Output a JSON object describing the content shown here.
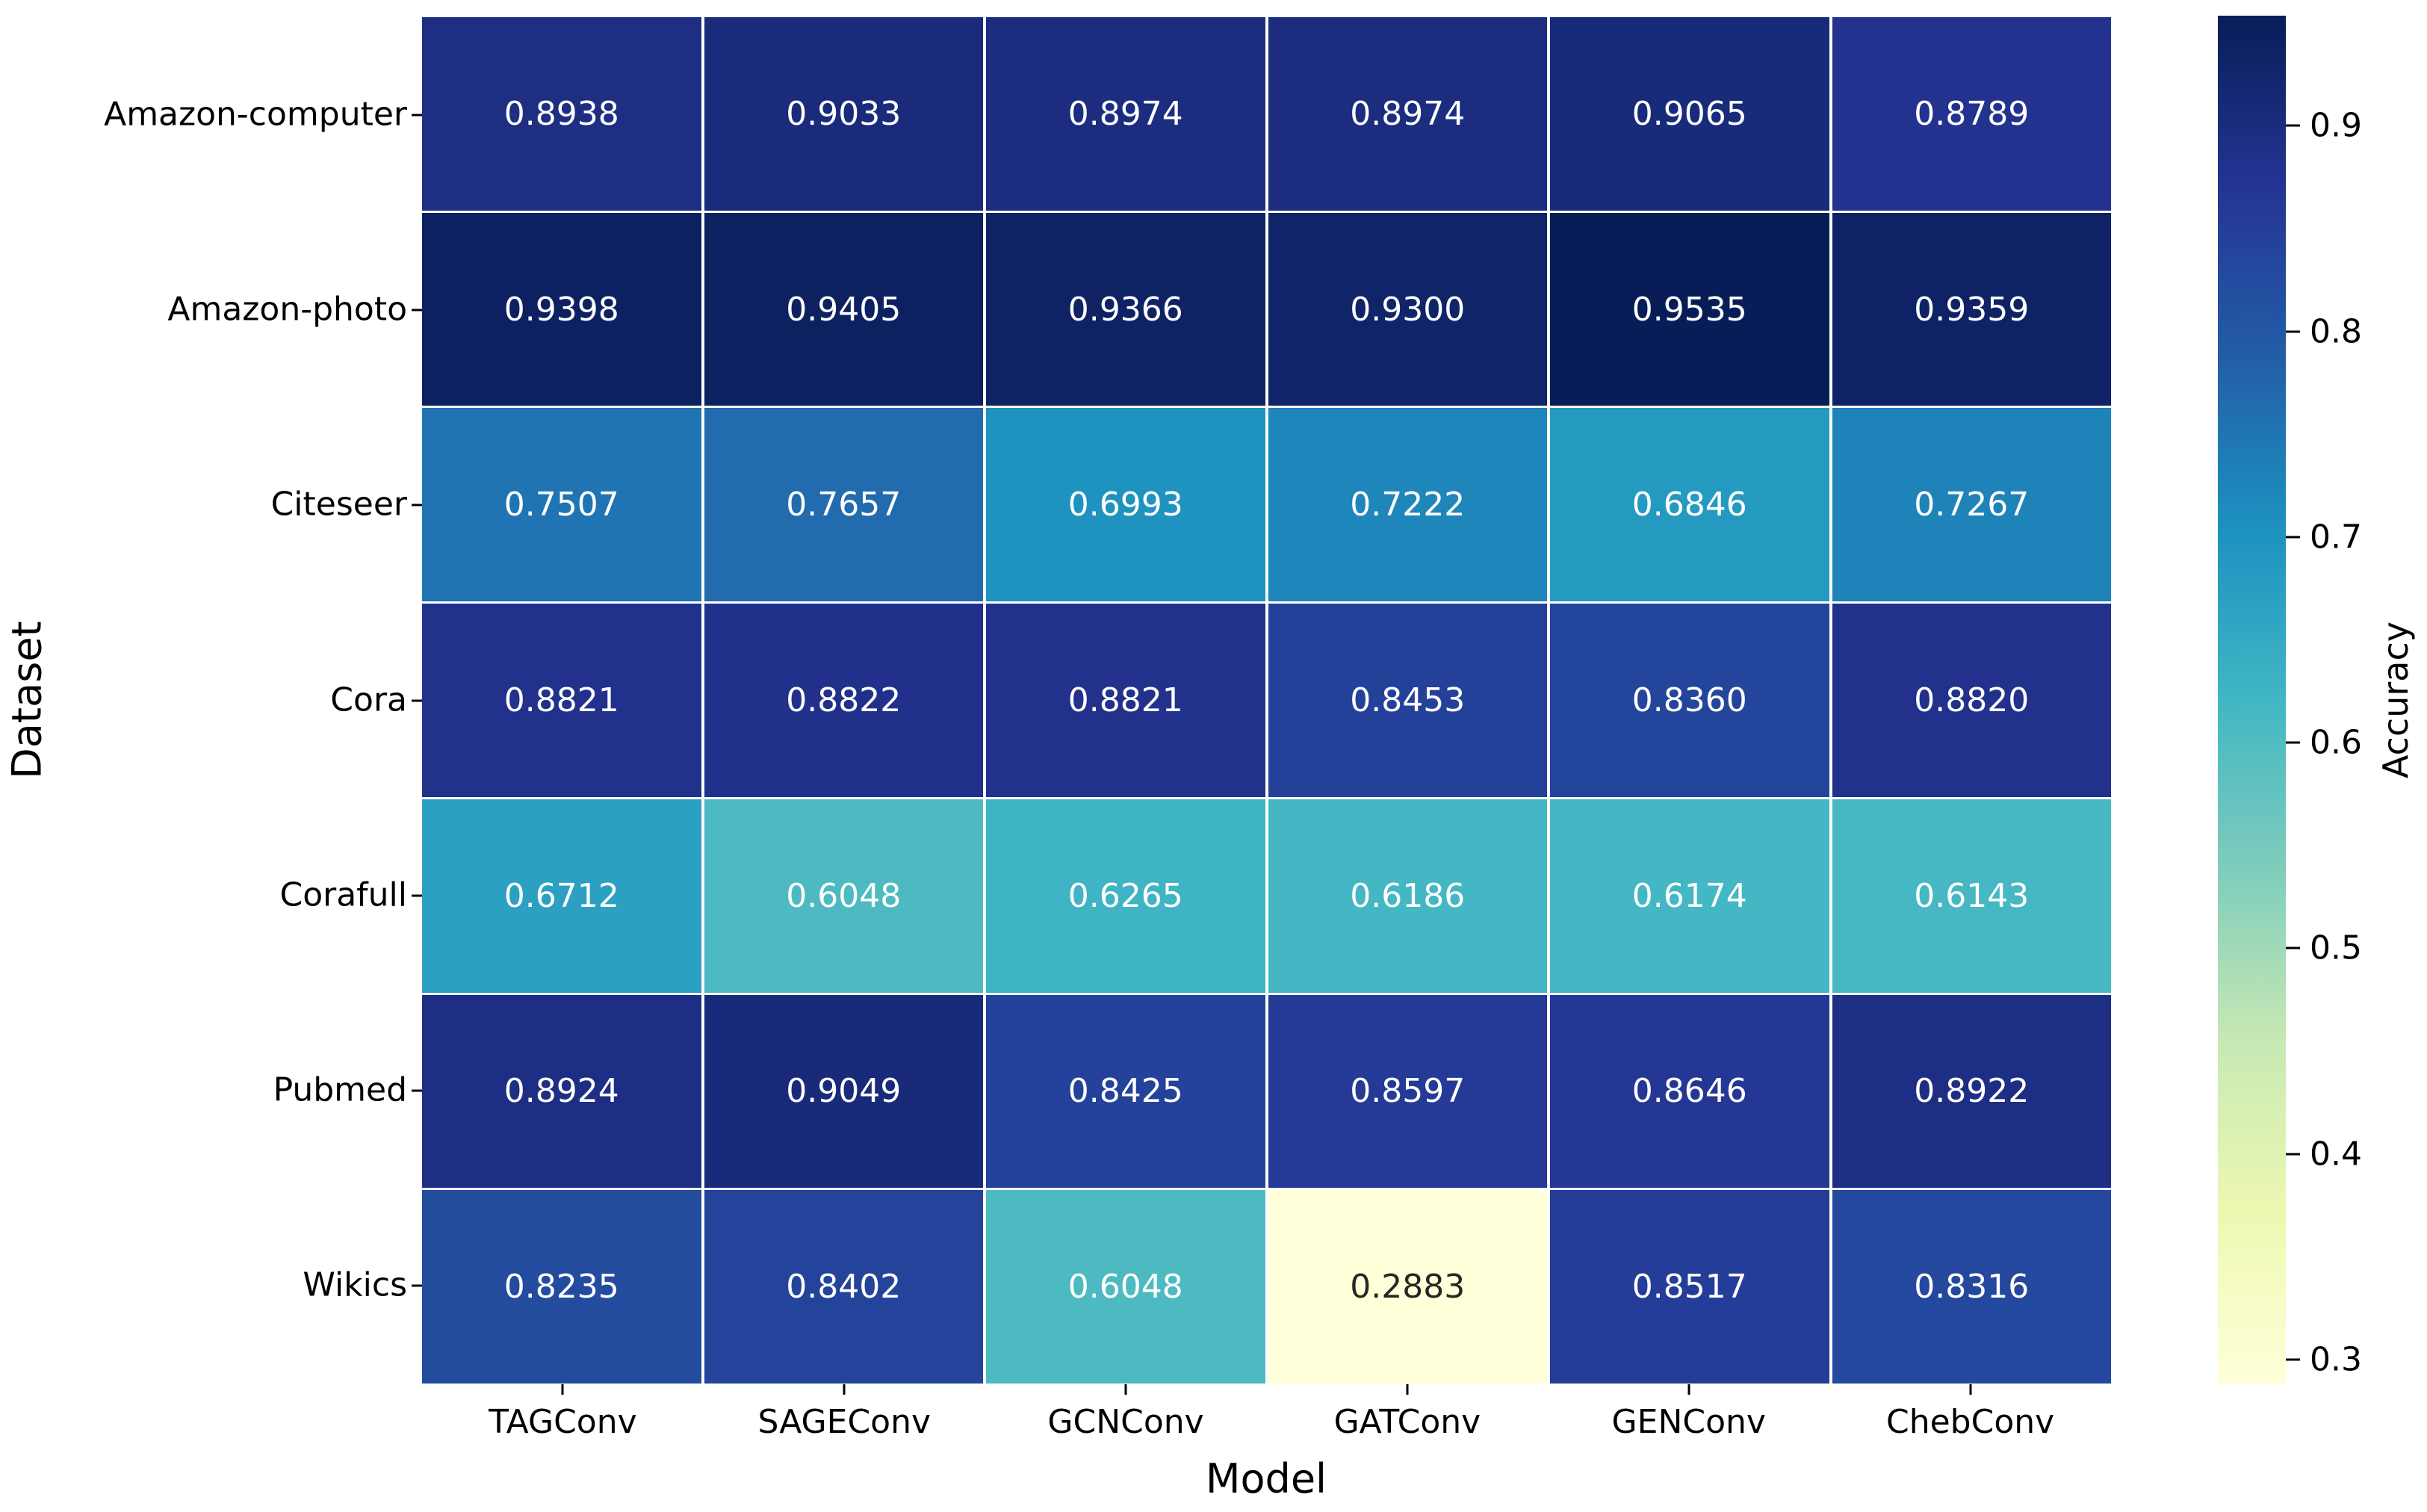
{
  "figure": {
    "background": "#ffffff"
  },
  "chart_data": {
    "type": "heatmap",
    "xlabel": "Model",
    "ylabel": "Dataset",
    "colorbar_label": "Accuracy",
    "x_categories": [
      "TAGConv",
      "SAGEConv",
      "GCNConv",
      "GATConv",
      "GENConv",
      "ChebConv"
    ],
    "y_categories": [
      "Amazon-computer",
      "Amazon-photo",
      "Citeseer",
      "Cora",
      "Corafull",
      "Pubmed",
      "Wikics"
    ],
    "values": [
      [
        0.8938,
        0.9033,
        0.8974,
        0.8974,
        0.9065,
        0.8789
      ],
      [
        0.9398,
        0.9405,
        0.9366,
        0.93,
        0.9535,
        0.9359
      ],
      [
        0.7507,
        0.7657,
        0.6993,
        0.7222,
        0.6846,
        0.7267
      ],
      [
        0.8821,
        0.8822,
        0.8821,
        0.8453,
        0.836,
        0.882
      ],
      [
        0.6712,
        0.6048,
        0.6265,
        0.6186,
        0.6174,
        0.6143
      ],
      [
        0.8924,
        0.9049,
        0.8425,
        0.8597,
        0.8646,
        0.8922
      ],
      [
        0.8235,
        0.8402,
        0.6048,
        0.2883,
        0.8517,
        0.8316
      ]
    ],
    "value_decimals": 4,
    "vmin": 0.2883,
    "vmax": 0.9535,
    "colorbar_ticks": [
      "0.9",
      "0.8",
      "0.7",
      "0.6",
      "0.5",
      "0.4",
      "0.3"
    ],
    "colormap": {
      "name": "YlGnBu",
      "stops": [
        "#ffffd9",
        "#edf8b1",
        "#c7e9b4",
        "#7fcdbb",
        "#41b6c4",
        "#1d91c0",
        "#225ea8",
        "#253494",
        "#081d58"
      ]
    },
    "grid_on": false,
    "gridline_color": "#ffffff",
    "annotation_light_text": "#ffffff",
    "annotation_dark_text": "#262626",
    "luminance_threshold": 0.408
  }
}
